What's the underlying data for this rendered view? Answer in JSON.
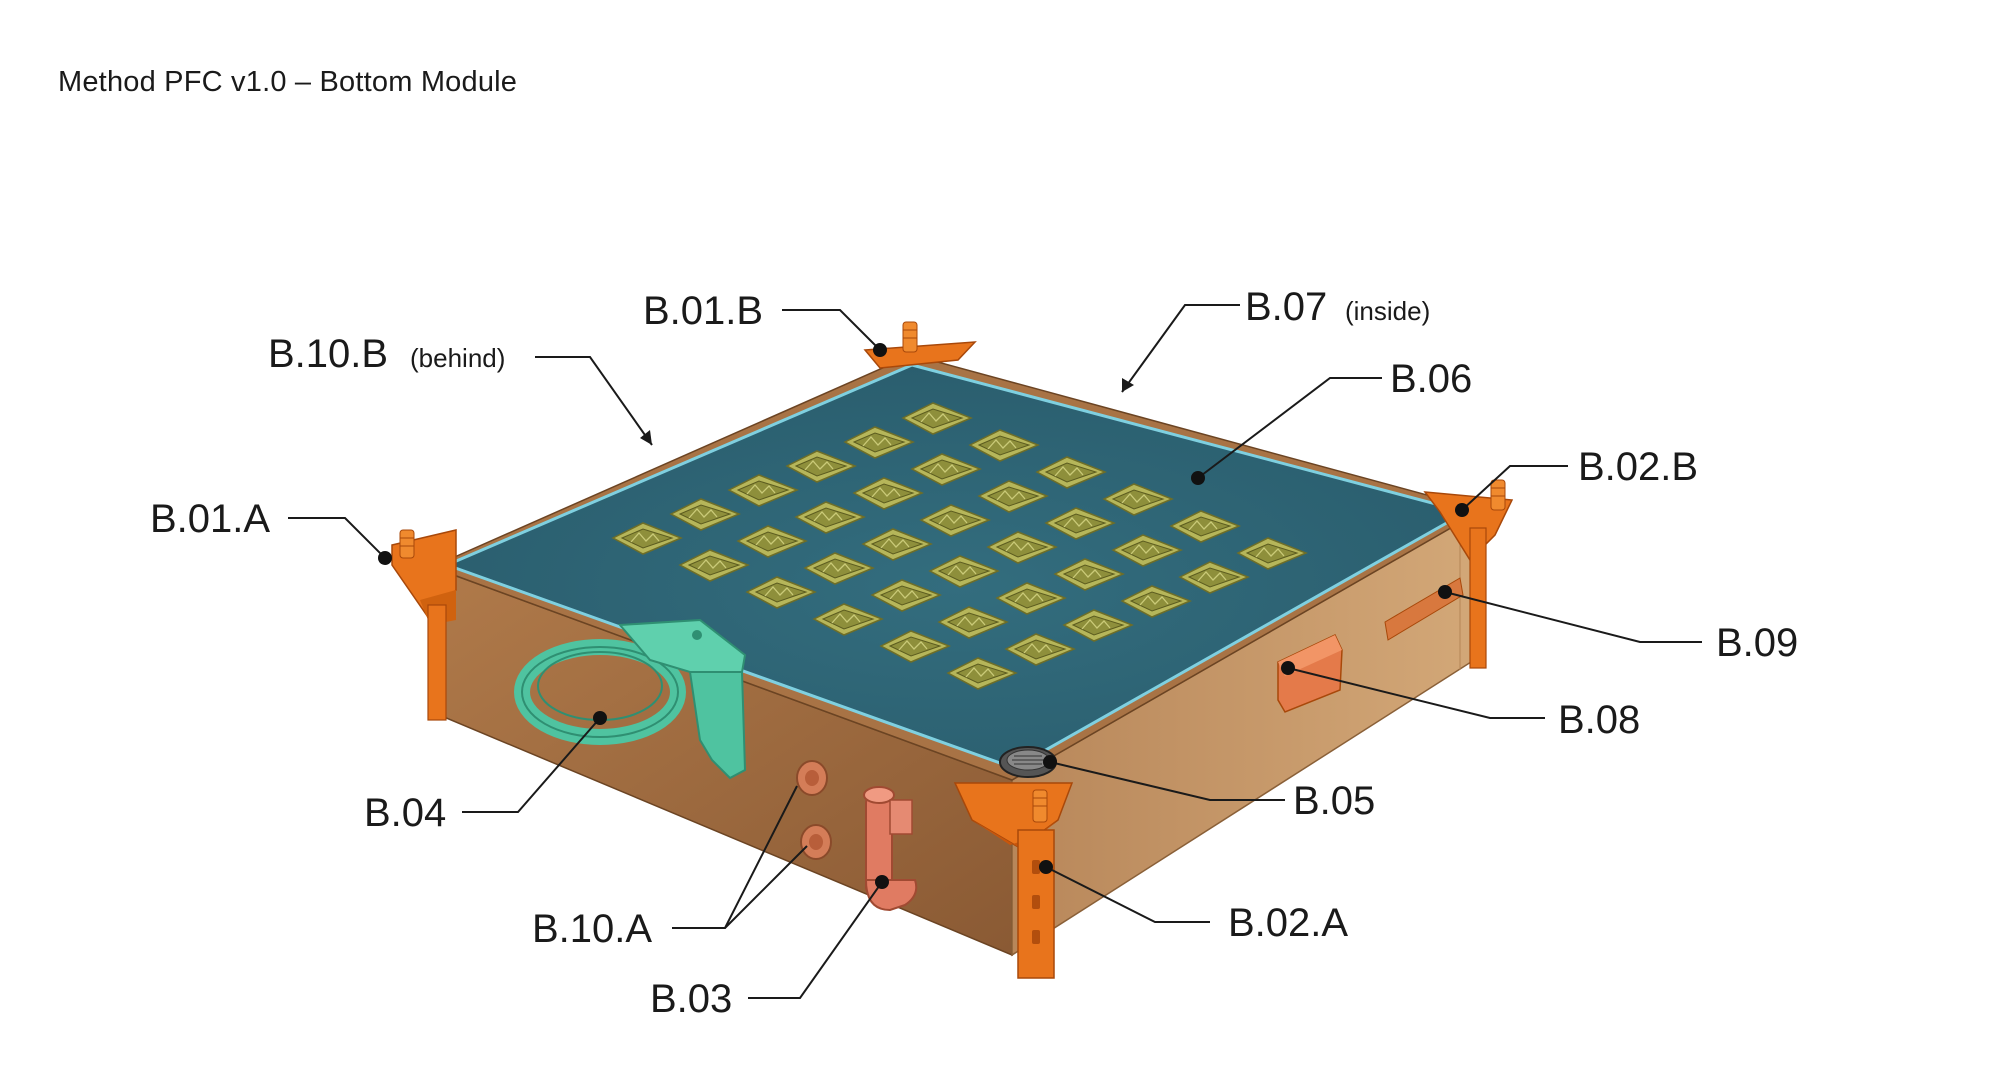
{
  "title": "Method PFC v1.0 – Bottom Module",
  "colors": {
    "frame_side_left": "#9a663b",
    "frame_side_right": "#c79a6a",
    "frame_top": "#a87345",
    "plate": "#2f6677",
    "plate_edge": "#78c8d8",
    "pot": "#b6b65a",
    "pot_inner": "#8e8f3b",
    "corner": "#e8741c",
    "holder": "#4fc3a0",
    "pipe": "#e07b62"
  },
  "callouts": [
    {
      "id": "B.01.A",
      "note": ""
    },
    {
      "id": "B.01.B",
      "note": ""
    },
    {
      "id": "B.02.A",
      "note": ""
    },
    {
      "id": "B.02.B",
      "note": ""
    },
    {
      "id": "B.03",
      "note": ""
    },
    {
      "id": "B.04",
      "note": ""
    },
    {
      "id": "B.05",
      "note": ""
    },
    {
      "id": "B.06",
      "note": ""
    },
    {
      "id": "B.07",
      "note": "(inside)"
    },
    {
      "id": "B.08",
      "note": ""
    },
    {
      "id": "B.09",
      "note": ""
    },
    {
      "id": "B.10.A",
      "note": ""
    },
    {
      "id": "B.10.B",
      "note": "(behind)"
    }
  ]
}
